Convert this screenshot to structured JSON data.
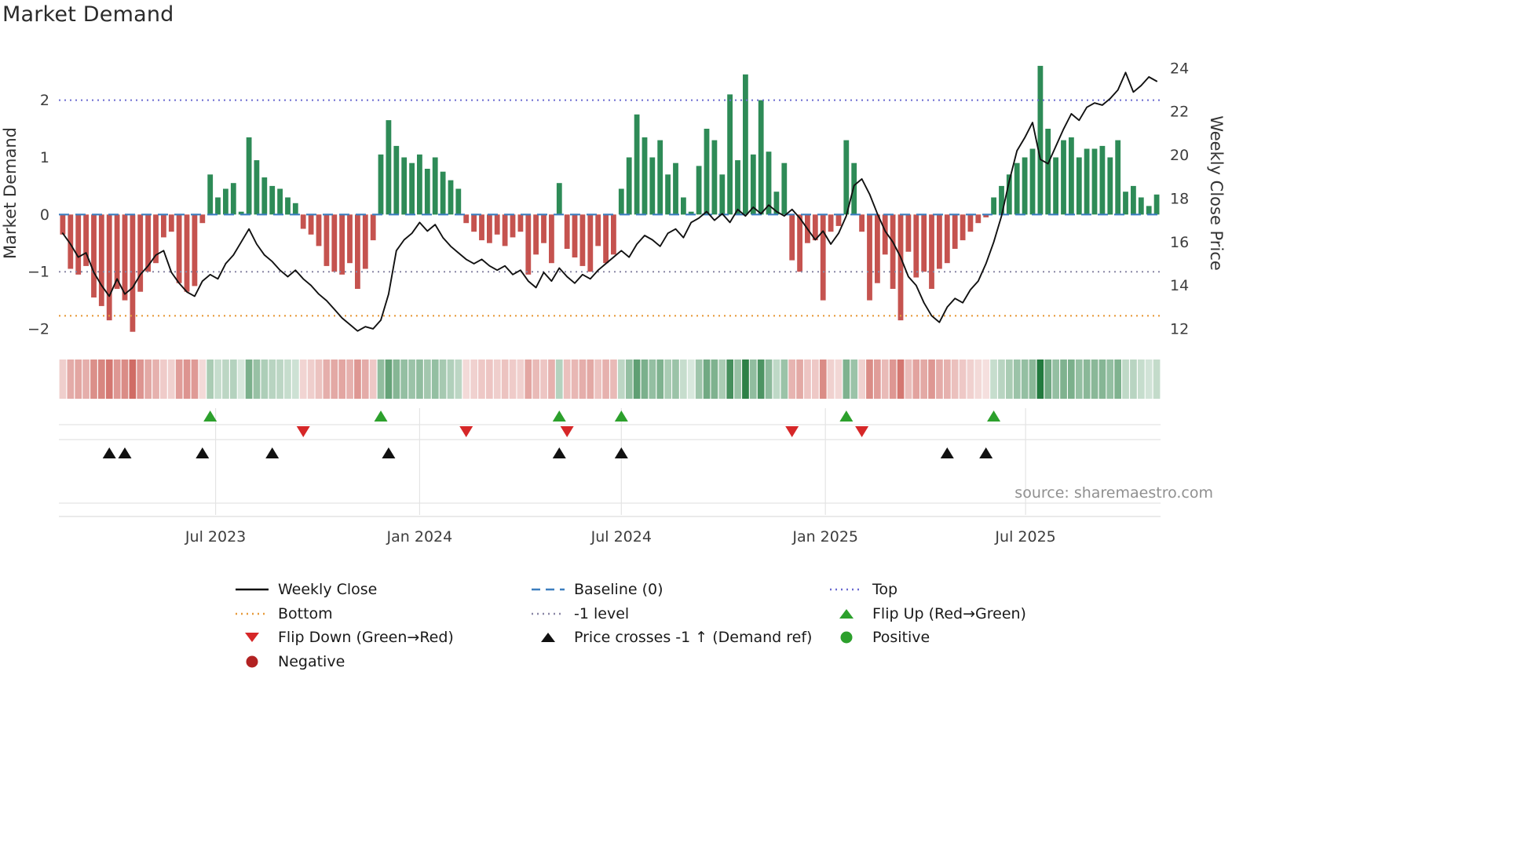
{
  "title": "Market Demand",
  "colors": {
    "bar_positive": "#2e8b57",
    "bar_negative": "#c5534f",
    "close_line": "#111111",
    "flip_up": "#2ca02c",
    "flip_down": "#d62728",
    "price_cross": "#111111",
    "heat_positive": "#227a3e",
    "heat_negative": "#c64c44",
    "grid": "#e4e4e4",
    "tick_text": "#3d3d3d",
    "axis_label_text": "#333333",
    "source_text": "#909090",
    "title_text": "#2b2b2b"
  },
  "chart_data": {
    "type": "combo",
    "title": "Market Demand",
    "x": [
      "2023-02-13",
      "2023-02-20",
      "2023-02-27",
      "2023-03-06",
      "2023-03-13",
      "2023-03-20",
      "2023-03-27",
      "2023-04-03",
      "2023-04-10",
      "2023-04-17",
      "2023-04-24",
      "2023-05-01",
      "2023-05-08",
      "2023-05-15",
      "2023-05-22",
      "2023-05-29",
      "2023-06-05",
      "2023-06-12",
      "2023-06-19",
      "2023-06-26",
      "2023-07-03",
      "2023-07-10",
      "2023-07-17",
      "2023-07-24",
      "2023-07-31",
      "2023-08-07",
      "2023-08-14",
      "2023-08-21",
      "2023-08-28",
      "2023-09-04",
      "2023-09-11",
      "2023-09-18",
      "2023-09-25",
      "2023-10-02",
      "2023-10-09",
      "2023-10-16",
      "2023-10-23",
      "2023-10-30",
      "2023-11-06",
      "2023-11-13",
      "2023-11-20",
      "2023-11-27",
      "2023-12-04",
      "2023-12-11",
      "2023-12-18",
      "2023-12-25",
      "2024-01-01",
      "2024-01-08",
      "2024-01-15",
      "2024-01-22",
      "2024-01-29",
      "2024-02-05",
      "2024-02-12",
      "2024-02-19",
      "2024-02-26",
      "2024-03-04",
      "2024-03-11",
      "2024-03-18",
      "2024-03-25",
      "2024-04-01",
      "2024-04-08",
      "2024-04-15",
      "2024-04-22",
      "2024-04-29",
      "2024-05-06",
      "2024-05-13",
      "2024-05-20",
      "2024-05-27",
      "2024-06-03",
      "2024-06-10",
      "2024-06-17",
      "2024-06-24",
      "2024-07-01",
      "2024-07-08",
      "2024-07-15",
      "2024-07-22",
      "2024-07-29",
      "2024-08-05",
      "2024-08-12",
      "2024-08-19",
      "2024-08-26",
      "2024-09-02",
      "2024-09-09",
      "2024-09-16",
      "2024-09-23",
      "2024-09-30",
      "2024-10-07",
      "2024-10-14",
      "2024-10-21",
      "2024-10-28",
      "2024-11-04",
      "2024-11-11",
      "2024-11-18",
      "2024-11-25",
      "2024-12-02",
      "2024-12-09",
      "2024-12-16",
      "2024-12-23",
      "2024-12-30",
      "2025-01-06",
      "2025-01-13",
      "2025-01-20",
      "2025-01-27",
      "2025-02-03",
      "2025-02-10",
      "2025-02-17",
      "2025-02-24",
      "2025-03-03",
      "2025-03-10",
      "2025-03-17",
      "2025-03-24",
      "2025-03-31",
      "2025-04-07",
      "2025-04-14",
      "2025-04-21",
      "2025-04-28",
      "2025-05-05",
      "2025-05-12",
      "2025-05-19",
      "2025-05-26",
      "2025-06-02",
      "2025-06-09",
      "2025-06-16",
      "2025-06-23",
      "2025-06-30",
      "2025-07-07",
      "2025-07-14",
      "2025-07-21",
      "2025-07-28",
      "2025-08-04",
      "2025-08-11",
      "2025-08-18",
      "2025-08-25",
      "2025-09-01",
      "2025-09-08",
      "2025-09-15",
      "2025-09-22",
      "2025-09-29",
      "2025-10-06",
      "2025-10-13",
      "2025-10-20",
      "2025-10-27"
    ],
    "series": [
      {
        "name": "Market Demand",
        "type": "bar",
        "axis": "left",
        "values": [
          -0.35,
          -0.95,
          -1.05,
          -0.9,
          -1.45,
          -1.6,
          -1.85,
          -1.3,
          -1.5,
          -2.05,
          -1.35,
          -1,
          -0.85,
          -0.4,
          -0.3,
          -1.2,
          -1.35,
          -1.25,
          -0.15,
          0.7,
          0.3,
          0.45,
          0.55,
          0.05,
          1.35,
          0.95,
          0.65,
          0.5,
          0.45,
          0.3,
          0.2,
          -0.25,
          -0.35,
          -0.55,
          -0.9,
          -1,
          -1.05,
          -0.85,
          -1.3,
          -0.95,
          -0.45,
          1.05,
          1.65,
          1.2,
          1,
          0.9,
          1.05,
          0.8,
          1,
          0.75,
          0.6,
          0.45,
          -0.15,
          -0.3,
          -0.45,
          -0.5,
          -0.35,
          -0.55,
          -0.4,
          -0.3,
          -1.05,
          -0.7,
          -0.5,
          -0.85,
          0.55,
          -0.6,
          -0.75,
          -0.9,
          -1,
          -0.55,
          -0.85,
          -0.7,
          0.45,
          1,
          1.75,
          1.35,
          1,
          1.3,
          0.7,
          0.9,
          0.3,
          0.05,
          0.85,
          1.5,
          1.3,
          0.7,
          2.1,
          0.95,
          2.45,
          1.05,
          2,
          1.1,
          0.4,
          0.9,
          -0.8,
          -1,
          -0.5,
          -0.45,
          -1.5,
          -0.3,
          -0.2,
          1.3,
          0.9,
          -0.3,
          -1.5,
          -1.2,
          -0.7,
          -1.3,
          -1.85,
          -0.65,
          -1.1,
          -1,
          -1.3,
          -0.95,
          -0.85,
          -0.6,
          -0.45,
          -0.3,
          -0.15,
          -0.05,
          0.3,
          0.5,
          0.7,
          0.9,
          1,
          1.15,
          2.6,
          1.5,
          1,
          1.3,
          1.35,
          1,
          1.15,
          1.15,
          1.2,
          1,
          1.3,
          0.4,
          0.5,
          0.3,
          0.15,
          0.35
        ]
      },
      {
        "name": "Weekly Close",
        "type": "line",
        "axis": "right",
        "values": [
          16.4,
          15.9,
          15.3,
          15.5,
          14.6,
          14,
          13.5,
          14.3,
          13.6,
          13.9,
          14.5,
          14.9,
          15.4,
          15.6,
          14.6,
          14.1,
          13.7,
          13.5,
          14.2,
          14.5,
          14.3,
          15,
          15.4,
          16,
          16.6,
          15.9,
          15.4,
          15.1,
          14.7,
          14.4,
          14.7,
          14.3,
          14,
          13.6,
          13.3,
          12.9,
          12.5,
          12.2,
          11.9,
          12.1,
          12,
          12.4,
          13.6,
          15.6,
          16.1,
          16.4,
          16.9,
          16.5,
          16.8,
          16.2,
          15.8,
          15.5,
          15.2,
          15,
          15.2,
          14.9,
          14.7,
          14.9,
          14.5,
          14.7,
          14.2,
          13.9,
          14.6,
          14.2,
          14.8,
          14.4,
          14.1,
          14.5,
          14.3,
          14.7,
          15,
          15.3,
          15.6,
          15.3,
          15.9,
          16.3,
          16.1,
          15.8,
          16.4,
          16.6,
          16.2,
          16.9,
          17.1,
          17.4,
          17,
          17.3,
          16.9,
          17.5,
          17.2,
          17.6,
          17.3,
          17.7,
          17.4,
          17.2,
          17.5,
          17.1,
          16.6,
          16.1,
          16.5,
          15.9,
          16.4,
          17.2,
          18.6,
          18.9,
          18.2,
          17.3,
          16.5,
          16,
          15.3,
          14.4,
          14,
          13.2,
          12.6,
          12.3,
          13,
          13.4,
          13.2,
          13.8,
          14.2,
          15,
          16,
          17.2,
          18.8,
          20.2,
          20.8,
          21.5,
          19.8,
          19.6,
          20.4,
          21.2,
          21.9,
          21.6,
          22.2,
          22.4,
          22.3,
          22.6,
          23,
          23.8,
          22.9,
          23.2,
          23.6,
          23.4
        ]
      }
    ],
    "left_axis": {
      "label": "Market Demand",
      "range": [
        -2.15,
        2.9
      ],
      "ticks": [
        {
          "v": 2,
          "label": "2"
        },
        {
          "v": 1,
          "label": "1"
        },
        {
          "v": 0,
          "label": "0"
        },
        {
          "v": -1,
          "label": "−1"
        },
        {
          "v": -2,
          "label": "−2"
        }
      ]
    },
    "right_axis": {
      "label": "Weekly Close Price",
      "range": [
        11.6,
        24.9
      ],
      "ticks": [
        {
          "v": 24,
          "label": "24"
        },
        {
          "v": 22,
          "label": "22"
        },
        {
          "v": 20,
          "label": "20"
        },
        {
          "v": 18,
          "label": "18"
        },
        {
          "v": 16,
          "label": "16"
        },
        {
          "v": 14,
          "label": "14"
        },
        {
          "v": 12,
          "label": "12"
        }
      ]
    },
    "x_ticks": [
      {
        "index": 19.7,
        "label": "Jul 2023"
      },
      {
        "index": 46,
        "label": "Jan 2024"
      },
      {
        "index": 72,
        "label": "Jul 2024"
      },
      {
        "index": 98.3,
        "label": "Jan 2025"
      },
      {
        "index": 124.1,
        "label": "Jul 2025"
      }
    ],
    "ref_lines": [
      {
        "name": "Top",
        "value": 2,
        "style": "dotted",
        "color": "#6a6ad0",
        "width": 2
      },
      {
        "name": "Baseline (0)",
        "value": 0,
        "style": "dashed",
        "color": "#3d7ebf",
        "width": 2.2
      },
      {
        "name": "-1 level",
        "value": -1,
        "style": "dotted",
        "color": "#8a87a6",
        "width": 2
      },
      {
        "name": "Bottom",
        "value": -1.77,
        "style": "dotted",
        "color": "#e79b3c",
        "width": 2.2
      }
    ],
    "markers": {
      "flip_up": [
        19,
        41,
        64,
        72,
        101,
        120
      ],
      "flip_down": [
        31,
        52,
        65,
        94,
        103
      ],
      "price_cross_minus1": [
        6,
        8,
        18,
        27,
        42,
        64,
        72,
        114,
        119
      ]
    },
    "heatmap": {
      "description": "weekly demand intensity strip",
      "max_abs": 2.6
    },
    "source": "source: sharemaestro.com"
  },
  "legend": {
    "columns": [
      [
        {
          "label": "Weekly Close",
          "swatch": "line",
          "color": "#111111",
          "icon": "black-line-icon"
        },
        {
          "label": "Bottom",
          "swatch": "dotted",
          "color": "#e79b3c",
          "icon": "orange-dotted-line-icon"
        },
        {
          "label": "Flip Down (Green→Red)",
          "swatch": "triangle-down",
          "color": "#d62728",
          "icon": "red-triangle-down-icon"
        },
        {
          "label": "Negative",
          "swatch": "circle",
          "color": "#b22222",
          "icon": "dark-red-circle-icon"
        }
      ],
      [
        {
          "label": "Baseline (0)",
          "swatch": "dashed",
          "color": "#3d7ebf",
          "icon": "blue-dashed-line-icon"
        },
        {
          "label": "-1 level",
          "swatch": "dotted",
          "color": "#8a87a6",
          "icon": "gray-dotted-line-icon"
        },
        {
          "label": "Price crosses -1 ↑ (Demand ref)",
          "swatch": "triangle-up",
          "color": "#111111",
          "icon": "black-triangle-up-icon"
        }
      ],
      [
        {
          "label": "Top",
          "swatch": "dotted",
          "color": "#6a6ad0",
          "icon": "purple-dotted-line-icon"
        },
        {
          "label": "Flip Up (Red→Green)",
          "swatch": "triangle-up",
          "color": "#2ca02c",
          "icon": "green-triangle-up-icon"
        },
        {
          "label": "Positive",
          "swatch": "circle",
          "color": "#2ca02c",
          "icon": "green-circle-icon"
        }
      ]
    ]
  }
}
